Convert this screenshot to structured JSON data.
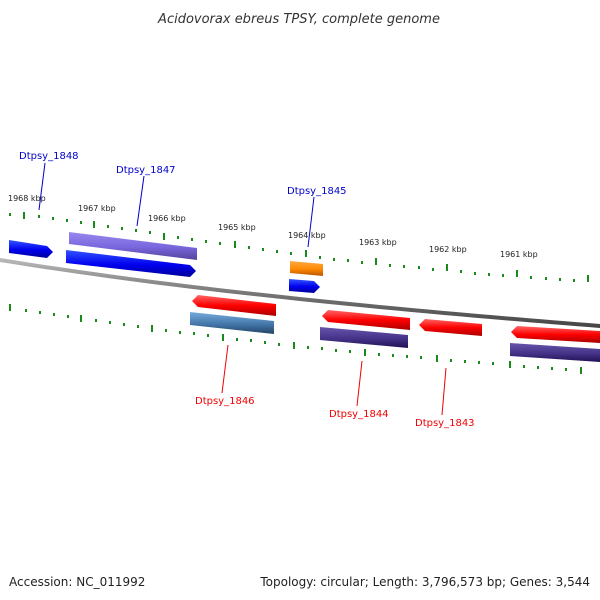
{
  "title": "Acidovorax ebreus TPSY, complete genome",
  "scale_ticks": [
    "1968 kbp",
    "1967 kbp",
    "1966 kbp",
    "1965 kbp",
    "1964 kbp",
    "1963 kbp",
    "1962 kbp",
    "1961 kbp"
  ],
  "genes": [
    {
      "name": "Dtpsy_1848",
      "strand": "forward",
      "color": "#0000ff"
    },
    {
      "name": "Dtpsy_1847",
      "strand": "forward",
      "color": "#0000ff"
    },
    {
      "name": "Dtpsy_1845",
      "strand": "forward",
      "color": "#0000ff"
    },
    {
      "name": "Dtpsy_1846",
      "strand": "reverse",
      "color": "#ff0000"
    },
    {
      "name": "Dtpsy_1844",
      "strand": "reverse",
      "color": "#ff0000"
    },
    {
      "name": "Dtpsy_1843",
      "strand": "reverse",
      "color": "#ff0000"
    }
  ],
  "colors": {
    "forward_label": "#0000cc",
    "reverse_label": "#ee0000",
    "tick": "#1a8a1a",
    "backbone": "#888888",
    "cog_purple": "#7766dd",
    "cog_dark": "#443388",
    "cog_steel": "#4477aa",
    "cog_orange": "#ff8800"
  },
  "footer": {
    "accession": "Accession: NC_011992",
    "summary": "Topology: circular; Length: 3,796,573 bp; Genes: 3,544"
  }
}
